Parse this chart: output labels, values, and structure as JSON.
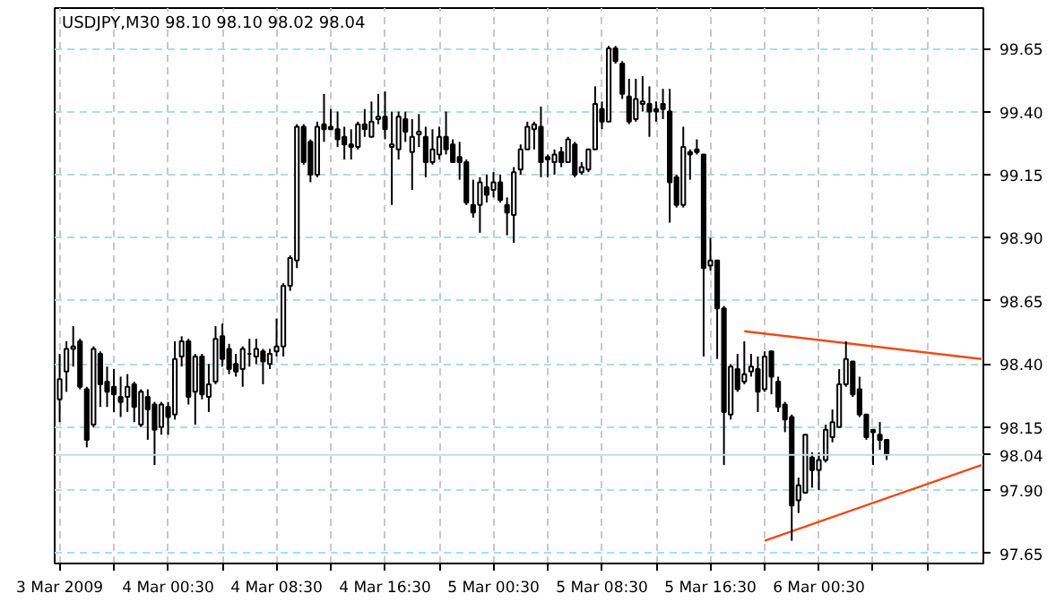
{
  "chart_data": {
    "type": "candlestick",
    "title": "USDJPY,M30  98.10 98.10 98.02 98.04",
    "x": [
      "2009-03-03T16:30",
      "2009-03-03T17:00",
      "2009-03-03T17:30",
      "2009-03-03T18:00",
      "2009-03-03T18:30",
      "2009-03-03T19:00",
      "2009-03-03T19:30",
      "2009-03-03T20:00",
      "2009-03-03T20:30",
      "2009-03-03T21:00",
      "2009-03-03T21:30",
      "2009-03-03T22:00",
      "2009-03-03T22:30",
      "2009-03-03T23:00",
      "2009-03-03T23:30",
      "2009-03-04T00:00",
      "2009-03-04T00:30",
      "2009-03-04T01:00",
      "2009-03-04T01:30",
      "2009-03-04T02:00",
      "2009-03-04T02:30",
      "2009-03-04T03:00",
      "2009-03-04T03:30",
      "2009-03-04T04:00",
      "2009-03-04T04:30",
      "2009-03-04T05:00",
      "2009-03-04T05:30",
      "2009-03-04T06:00",
      "2009-03-04T06:30",
      "2009-03-04T07:00",
      "2009-03-04T07:30",
      "2009-03-04T08:00",
      "2009-03-04T08:30",
      "2009-03-04T09:00",
      "2009-03-04T09:30",
      "2009-03-04T10:00",
      "2009-03-04T10:30",
      "2009-03-04T11:00",
      "2009-03-04T11:30",
      "2009-03-04T12:00",
      "2009-03-04T12:30",
      "2009-03-04T13:00",
      "2009-03-04T13:30",
      "2009-03-04T14:00",
      "2009-03-04T14:30",
      "2009-03-04T15:00",
      "2009-03-04T15:30",
      "2009-03-04T16:00",
      "2009-03-04T16:30",
      "2009-03-04T17:00",
      "2009-03-04T17:30",
      "2009-03-04T18:00",
      "2009-03-04T18:30",
      "2009-03-04T19:00",
      "2009-03-04T19:30",
      "2009-03-04T20:00",
      "2009-03-04T20:30",
      "2009-03-04T21:00",
      "2009-03-04T21:30",
      "2009-03-04T22:00",
      "2009-03-04T22:30",
      "2009-03-04T23:00",
      "2009-03-04T23:30",
      "2009-03-05T00:00",
      "2009-03-05T00:30",
      "2009-03-05T01:00",
      "2009-03-05T01:30",
      "2009-03-05T02:00",
      "2009-03-05T02:30",
      "2009-03-05T03:00",
      "2009-03-05T03:30",
      "2009-03-05T04:00",
      "2009-03-05T04:30",
      "2009-03-05T05:00",
      "2009-03-05T05:30",
      "2009-03-05T06:00",
      "2009-03-05T06:30",
      "2009-03-05T07:00",
      "2009-03-05T07:30",
      "2009-03-05T08:00",
      "2009-03-05T08:30",
      "2009-03-05T09:00",
      "2009-03-05T09:30",
      "2009-03-05T10:00",
      "2009-03-05T10:30",
      "2009-03-05T11:00",
      "2009-03-05T11:30",
      "2009-03-05T12:00",
      "2009-03-05T12:30",
      "2009-03-05T13:00",
      "2009-03-05T13:30",
      "2009-03-05T14:00",
      "2009-03-05T14:30",
      "2009-03-05T15:00",
      "2009-03-05T15:30",
      "2009-03-05T16:00",
      "2009-03-05T16:30",
      "2009-03-05T17:00",
      "2009-03-05T17:30",
      "2009-03-05T18:00",
      "2009-03-05T18:30",
      "2009-03-05T19:00",
      "2009-03-05T19:30",
      "2009-03-05T20:00",
      "2009-03-05T20:30",
      "2009-03-05T21:00",
      "2009-03-05T21:30",
      "2009-03-05T22:00",
      "2009-03-05T22:30",
      "2009-03-05T23:00",
      "2009-03-05T23:30",
      "2009-03-06T00:00",
      "2009-03-06T00:30",
      "2009-03-06T01:00",
      "2009-03-06T01:30",
      "2009-03-06T02:00",
      "2009-03-06T02:30",
      "2009-03-06T03:00",
      "2009-03-06T03:30",
      "2009-03-06T04:00",
      "2009-03-06T04:30",
      "2009-03-06T05:00",
      "2009-03-06T05:30"
    ],
    "ohlc": [
      [
        98.26,
        98.44,
        98.17,
        98.34
      ],
      [
        98.37,
        98.49,
        98.29,
        98.46
      ],
      [
        98.46,
        98.55,
        98.39,
        98.47
      ],
      [
        98.49,
        98.5,
        98.3,
        98.31
      ],
      [
        98.3,
        98.31,
        98.07,
        98.1
      ],
      [
        98.16,
        98.47,
        98.15,
        98.46
      ],
      [
        98.44,
        98.45,
        98.23,
        98.32
      ],
      [
        98.33,
        98.39,
        98.23,
        98.29
      ],
      [
        98.31,
        98.38,
        98.21,
        98.28
      ],
      [
        98.27,
        98.35,
        98.19,
        98.25
      ],
      [
        98.27,
        98.36,
        98.21,
        98.31
      ],
      [
        98.32,
        98.33,
        98.17,
        98.23
      ],
      [
        98.16,
        98.3,
        98.15,
        98.29
      ],
      [
        98.27,
        98.3,
        98.1,
        98.22
      ],
      [
        98.24,
        98.25,
        98.0,
        98.14
      ],
      [
        98.15,
        98.25,
        98.12,
        98.24
      ],
      [
        98.23,
        98.25,
        98.12,
        98.19
      ],
      [
        98.2,
        98.49,
        98.18,
        98.42
      ],
      [
        98.43,
        98.51,
        98.39,
        98.49
      ],
      [
        98.49,
        98.5,
        98.24,
        98.27
      ],
      [
        98.29,
        98.44,
        98.16,
        98.43
      ],
      [
        98.43,
        98.44,
        98.26,
        98.28
      ],
      [
        98.27,
        98.4,
        98.21,
        98.32
      ],
      [
        98.33,
        98.55,
        98.32,
        98.5
      ],
      [
        98.51,
        98.56,
        98.39,
        98.42
      ],
      [
        98.46,
        98.48,
        98.36,
        98.38
      ],
      [
        98.4,
        98.44,
        98.35,
        98.37
      ],
      [
        98.38,
        98.47,
        98.31,
        98.46
      ],
      [
        98.44,
        98.5,
        98.39,
        98.44
      ],
      [
        98.43,
        98.5,
        98.4,
        98.46
      ],
      [
        98.45,
        98.46,
        98.32,
        98.41
      ],
      [
        98.4,
        98.46,
        98.38,
        98.44
      ],
      [
        98.45,
        98.58,
        98.43,
        98.47
      ],
      [
        98.47,
        98.72,
        98.43,
        98.71
      ],
      [
        98.71,
        98.83,
        98.69,
        98.82
      ],
      [
        98.81,
        99.35,
        98.78,
        99.34
      ],
      [
        99.34,
        99.35,
        99.19,
        99.2
      ],
      [
        99.28,
        99.29,
        99.12,
        99.15
      ],
      [
        99.15,
        99.36,
        99.14,
        99.34
      ],
      [
        99.35,
        99.47,
        99.28,
        99.33
      ],
      [
        99.34,
        99.41,
        99.33,
        99.33
      ],
      [
        99.33,
        99.4,
        99.26,
        99.29
      ],
      [
        99.3,
        99.34,
        99.21,
        99.27
      ],
      [
        99.27,
        99.33,
        99.21,
        99.26
      ],
      [
        99.26,
        99.36,
        99.25,
        99.35
      ],
      [
        99.35,
        99.41,
        99.3,
        99.33
      ],
      [
        99.3,
        99.44,
        99.3,
        99.36
      ],
      [
        99.37,
        99.47,
        99.35,
        99.38
      ],
      [
        99.38,
        99.48,
        99.29,
        99.33
      ],
      [
        99.26,
        99.4,
        99.03,
        99.27
      ],
      [
        99.25,
        99.4,
        99.21,
        99.38
      ],
      [
        99.37,
        99.4,
        99.28,
        99.32
      ],
      [
        99.24,
        99.37,
        99.09,
        99.3
      ],
      [
        99.31,
        99.39,
        99.26,
        99.32
      ],
      [
        99.3,
        99.34,
        99.14,
        99.2
      ],
      [
        99.2,
        99.33,
        99.19,
        99.25
      ],
      [
        99.23,
        99.34,
        99.21,
        99.3
      ],
      [
        99.3,
        99.4,
        99.23,
        99.25
      ],
      [
        99.27,
        99.29,
        99.2,
        99.2
      ],
      [
        99.22,
        99.28,
        99.13,
        99.2
      ],
      [
        99.2,
        99.21,
        99.03,
        99.04
      ],
      [
        99.03,
        99.13,
        98.98,
        99.0
      ],
      [
        99.03,
        99.14,
        98.92,
        99.12
      ],
      [
        99.1,
        99.15,
        99.04,
        99.07
      ],
      [
        99.09,
        99.16,
        99.06,
        99.12
      ],
      [
        99.12,
        99.15,
        99.04,
        99.05
      ],
      [
        99.03,
        99.06,
        98.91,
        99.0
      ],
      [
        98.99,
        99.18,
        98.88,
        99.16
      ],
      [
        99.17,
        99.27,
        99.15,
        99.25
      ],
      [
        99.25,
        99.36,
        99.25,
        99.34
      ],
      [
        99.33,
        99.36,
        99.25,
        99.35
      ],
      [
        99.34,
        99.42,
        99.14,
        99.2
      ],
      [
        99.22,
        99.23,
        99.14,
        99.21
      ],
      [
        99.2,
        99.25,
        99.15,
        99.23
      ],
      [
        99.24,
        99.26,
        99.18,
        99.2
      ],
      [
        99.2,
        99.3,
        99.2,
        99.29
      ],
      [
        99.27,
        99.28,
        99.14,
        99.15
      ],
      [
        99.16,
        99.2,
        99.15,
        99.18
      ],
      [
        99.17,
        99.25,
        99.16,
        99.25
      ],
      [
        99.25,
        99.5,
        99.25,
        99.43
      ],
      [
        99.41,
        99.44,
        99.33,
        99.36
      ],
      [
        99.36,
        99.66,
        99.36,
        99.65
      ],
      [
        99.65,
        99.66,
        99.59,
        99.6
      ],
      [
        99.59,
        99.6,
        99.45,
        99.47
      ],
      [
        99.46,
        99.53,
        99.35,
        99.36
      ],
      [
        99.37,
        99.53,
        99.36,
        99.45
      ],
      [
        99.43,
        99.54,
        99.4,
        99.44
      ],
      [
        99.43,
        99.5,
        99.3,
        99.4
      ],
      [
        99.41,
        99.44,
        99.36,
        99.4
      ],
      [
        99.43,
        99.49,
        99.37,
        99.41
      ],
      [
        99.4,
        99.49,
        98.96,
        99.12
      ],
      [
        99.14,
        99.15,
        99.02,
        99.03
      ],
      [
        99.03,
        99.34,
        99.02,
        99.26
      ],
      [
        99.24,
        99.25,
        99.13,
        99.23
      ],
      [
        99.25,
        99.29,
        99.23,
        99.24
      ],
      [
        99.23,
        99.23,
        98.43,
        98.78
      ],
      [
        98.79,
        98.9,
        98.77,
        98.81
      ],
      [
        98.81,
        98.81,
        98.42,
        98.62
      ],
      [
        98.62,
        98.63,
        98.0,
        98.21
      ],
      [
        98.2,
        98.4,
        98.18,
        98.39
      ],
      [
        98.38,
        98.44,
        98.29,
        98.3
      ],
      [
        98.33,
        98.49,
        98.32,
        98.36
      ],
      [
        98.37,
        98.44,
        98.35,
        98.39
      ],
      [
        98.38,
        98.43,
        98.21,
        98.29
      ],
      [
        98.3,
        98.45,
        98.29,
        98.43
      ],
      [
        98.45,
        98.45,
        98.28,
        98.35
      ],
      [
        98.33,
        98.35,
        98.21,
        98.23
      ],
      [
        98.24,
        98.25,
        98.13,
        98.18
      ],
      [
        98.19,
        98.2,
        97.7,
        97.84
      ],
      [
        97.86,
        97.95,
        97.81,
        97.92
      ],
      [
        97.89,
        98.12,
        97.89,
        98.12
      ],
      [
        98.03,
        98.05,
        97.91,
        97.98
      ],
      [
        97.98,
        98.05,
        97.9,
        98.02
      ],
      [
        98.02,
        98.16,
        98.01,
        98.14
      ],
      [
        98.11,
        98.22,
        98.09,
        98.17
      ],
      [
        98.15,
        98.38,
        98.15,
        98.32
      ],
      [
        98.32,
        98.49,
        98.31,
        98.42
      ],
      [
        98.41,
        98.41,
        98.27,
        98.28
      ],
      [
        98.3,
        98.35,
        98.19,
        98.2
      ],
      [
        98.2,
        98.2,
        98.1,
        98.11
      ],
      [
        98.14,
        98.14,
        98.0,
        98.13
      ],
      [
        98.12,
        98.17,
        98.06,
        98.1
      ],
      [
        98.1,
        98.1,
        98.02,
        98.04
      ]
    ],
    "series": [
      {
        "type": "line",
        "color": "#f04a1a",
        "x": [
          "2009-03-05T19:00",
          "2009-03-06T12:30"
        ],
        "values": [
          98.53,
          98.42
        ]
      },
      {
        "type": "line",
        "color": "#f04a1a",
        "x": [
          "2009-03-05T20:30",
          "2009-03-06T12:30"
        ],
        "values": [
          97.7,
          98.0
        ]
      }
    ],
    "xlim": [
      "2009-03-03T16:08",
      "2009-03-06T12:38"
    ],
    "xticks": [
      {
        "value": "2009-03-03T16:30",
        "label": "3 Mar 2009"
      },
      {
        "value": "2009-03-03T20:30",
        "label": null
      },
      {
        "value": "2009-03-04T00:30",
        "label": "4 Mar 00:30"
      },
      {
        "value": "2009-03-04T04:30",
        "label": null
      },
      {
        "value": "2009-03-04T08:30",
        "label": "4 Mar 08:30"
      },
      {
        "value": "2009-03-04T12:30",
        "label": null
      },
      {
        "value": "2009-03-04T16:30",
        "label": "4 Mar 16:30"
      },
      {
        "value": "2009-03-04T20:30",
        "label": null
      },
      {
        "value": "2009-03-05T00:30",
        "label": "5 Mar 00:30"
      },
      {
        "value": "2009-03-05T04:30",
        "label": null
      },
      {
        "value": "2009-03-05T08:30",
        "label": "5 Mar 08:30"
      },
      {
        "value": "2009-03-05T12:30",
        "label": null
      },
      {
        "value": "2009-03-05T16:30",
        "label": "5 Mar 16:30"
      },
      {
        "value": "2009-03-05T20:30",
        "label": null
      },
      {
        "value": "2009-03-06T00:30",
        "label": "6 Mar 00:30"
      },
      {
        "value": "2009-03-06T04:30",
        "label": null
      },
      {
        "value": "2009-03-06T08:30",
        "label": null
      }
    ],
    "ylim": [
      97.61,
      99.81
    ],
    "yticks": [
      99.65,
      {
        "value": 99.4,
        "label": "99.40"
      },
      99.15,
      {
        "value": 98.9,
        "label": "98.90"
      },
      98.65,
      {
        "value": 98.4,
        "label": "98.40"
      },
      98.15,
      {
        "value": 97.9,
        "label": "97.90"
      },
      97.65
    ],
    "ref_lines": [
      {
        "axis": "y",
        "value": 98.04,
        "label": "98.04",
        "color": "#b4e4e4"
      }
    ],
    "grid": true
  }
}
